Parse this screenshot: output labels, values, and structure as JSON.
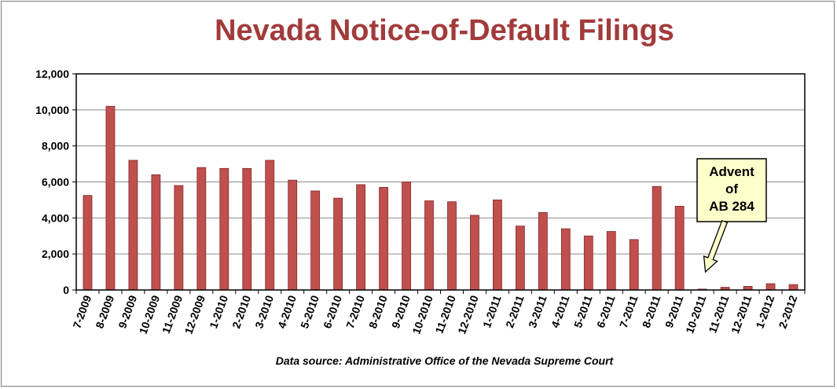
{
  "chart_data": {
    "type": "bar",
    "title": "Nevada Notice-of-Default Filings",
    "source": "Data source:  Administrative Office of the  Nevada Supreme Court",
    "categories": [
      "7-2009",
      "8-2009",
      "9-2009",
      "10-2009",
      "11-2009",
      "12-2009",
      "1-2010",
      "2-2010",
      "3-2010",
      "4-2010",
      "5-2010",
      "6-2010",
      "7-2010",
      "8-2010",
      "9-2010",
      "10-2010",
      "11-2010",
      "12-2010",
      "1-2011",
      "2-2011",
      "3-2011",
      "4-2011",
      "5-2011",
      "6-2011",
      "7-2011",
      "8-2011",
      "9-2011",
      "10-2011",
      "11-2011",
      "12-2011",
      "1-2012",
      "2-2012"
    ],
    "values": [
      5250,
      10200,
      7200,
      6400,
      5800,
      6800,
      6750,
      6750,
      7200,
      6100,
      5500,
      5100,
      5850,
      5700,
      6000,
      4950,
      4900,
      4150,
      5000,
      3550,
      4300,
      3400,
      3000,
      3250,
      2800,
      5750,
      4650,
      50,
      150,
      200,
      350,
      300
    ],
    "ylim": [
      0,
      12000
    ],
    "yticks": [
      0,
      2000,
      4000,
      6000,
      8000,
      10000,
      12000
    ],
    "ytick_labels": [
      "0",
      "2,000",
      "4,000",
      "6,000",
      "8,000",
      "10,000",
      "12,000"
    ],
    "grid": true,
    "bar_color": "#c0504d",
    "bar_edge_color": "#7f2a28",
    "annotation": {
      "lines": [
        "Advent",
        "of",
        "AB 284"
      ],
      "points_to": "10-2011",
      "fill": "#ffffcc"
    }
  }
}
